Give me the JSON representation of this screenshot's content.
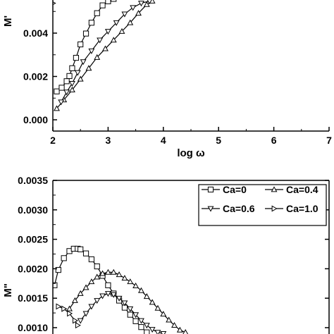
{
  "chart_data": [
    {
      "type": "line",
      "title": "",
      "xlabel": "log ω",
      "ylabel": "M'",
      "xlim": [
        2,
        7
      ],
      "ylim": [
        -0.0003,
        0.0058
      ],
      "x_ticks": [
        "2",
        "3",
        "4",
        "5",
        "6",
        "7"
      ],
      "y_ticks": [
        "0.000",
        "0.002",
        "0.004"
      ],
      "legend": "none",
      "series": [
        {
          "marker": "square",
          "x": [
            2.07,
            2.16,
            2.25,
            2.3,
            2.35,
            2.42,
            2.5,
            2.6,
            2.7,
            2.8,
            2.9,
            3.0,
            3.1
          ],
          "y": [
            0.00131,
            0.00148,
            0.00178,
            0.00202,
            0.00238,
            0.00286,
            0.00348,
            0.00398,
            0.00448,
            0.00492,
            0.00528,
            0.00547,
            0.00558
          ]
        },
        {
          "marker": "triangle-up",
          "x": [
            2.07,
            2.2,
            2.35,
            2.5,
            2.65,
            2.8,
            2.95,
            3.1,
            3.25,
            3.4,
            3.55,
            3.7,
            3.8
          ],
          "y": [
            0.00052,
            0.00092,
            0.00138,
            0.00188,
            0.00238,
            0.00288,
            0.00328,
            0.00368,
            0.00408,
            0.00448,
            0.00492,
            0.00532,
            0.00548
          ]
        },
        {
          "marker": "triangle-down",
          "x": [
            2.15,
            2.25,
            2.35,
            2.45,
            2.55,
            2.7,
            2.85,
            3.0,
            3.15,
            3.3,
            3.45,
            3.6,
            3.75
          ],
          "y": [
            0.00082,
            0.00128,
            0.00168,
            0.00218,
            0.00268,
            0.00318,
            0.00368,
            0.00408,
            0.00448,
            0.00488,
            0.00518,
            0.00538,
            0.00548
          ]
        },
        {
          "marker": "triangle-right",
          "x": [
            2.0
          ],
          "y": [
            0.00538
          ]
        }
      ]
    },
    {
      "type": "line",
      "title": "",
      "xlabel": "",
      "ylabel": "M\"",
      "ylim": [
        0.00085,
        0.0035
      ],
      "x_range": [
        2,
        7
      ],
      "y_ticks": [
        "0.0010",
        "0.0015",
        "0.0020",
        "0.0025",
        "0.0030",
        "0.0035"
      ],
      "legend": "top-right",
      "series": [
        {
          "name": "Ca=0",
          "marker": "square",
          "x": [
            2.03,
            2.1,
            2.2,
            2.3,
            2.38,
            2.45,
            2.5,
            2.6,
            2.7,
            2.8,
            2.9,
            3.0,
            3.1,
            3.2,
            3.3,
            3.4,
            3.5,
            3.6,
            3.7
          ],
          "y": [
            0.00172,
            0.00198,
            0.00218,
            0.0023,
            0.00234,
            0.00234,
            0.00233,
            0.00226,
            0.00216,
            0.00204,
            0.00188,
            0.00172,
            0.00158,
            0.00146,
            0.00134,
            0.00122,
            0.00111,
            0.00101,
            0.00092
          ]
        },
        {
          "name": "Ca=0.4",
          "marker": "triangle-up",
          "x": [
            2.3,
            2.4,
            2.5,
            2.6,
            2.7,
            2.8,
            2.9,
            3.0,
            3.1,
            3.2,
            3.3,
            3.4,
            3.5,
            3.6,
            3.7,
            3.8,
            3.9,
            4.0,
            4.1,
            4.2,
            4.3,
            4.4
          ],
          "y": [
            0.00132,
            0.00146,
            0.00158,
            0.00168,
            0.00178,
            0.00186,
            0.00192,
            0.00194,
            0.00194,
            0.0019,
            0.00184,
            0.00178,
            0.00171,
            0.00163,
            0.00153,
            0.00143,
            0.00133,
            0.00123,
            0.00113,
            0.00104,
            0.00096,
            0.00092
          ]
        },
        {
          "name": "Ca=0.6",
          "marker": "triangle-down",
          "x": [
            2.5,
            2.6,
            2.7,
            2.8,
            2.9,
            3.0,
            3.1,
            3.2,
            3.3,
            3.4,
            3.5,
            3.6,
            3.7,
            3.8,
            3.9,
            4.0
          ],
          "y": [
            0.00112,
            0.00124,
            0.00136,
            0.00146,
            0.00154,
            0.00158,
            0.00156,
            0.0015,
            0.00142,
            0.00132,
            0.00122,
            0.00112,
            0.00104,
            0.00097,
            0.00092,
            0.0009
          ]
        },
        {
          "name": "Ca=1.0",
          "marker": "triangle-right",
          "x": [
            2.1,
            2.2,
            2.3,
            2.4,
            2.45
          ],
          "y": [
            0.00136,
            0.00132,
            0.00124,
            0.00112,
            0.00104
          ]
        }
      ]
    }
  ]
}
